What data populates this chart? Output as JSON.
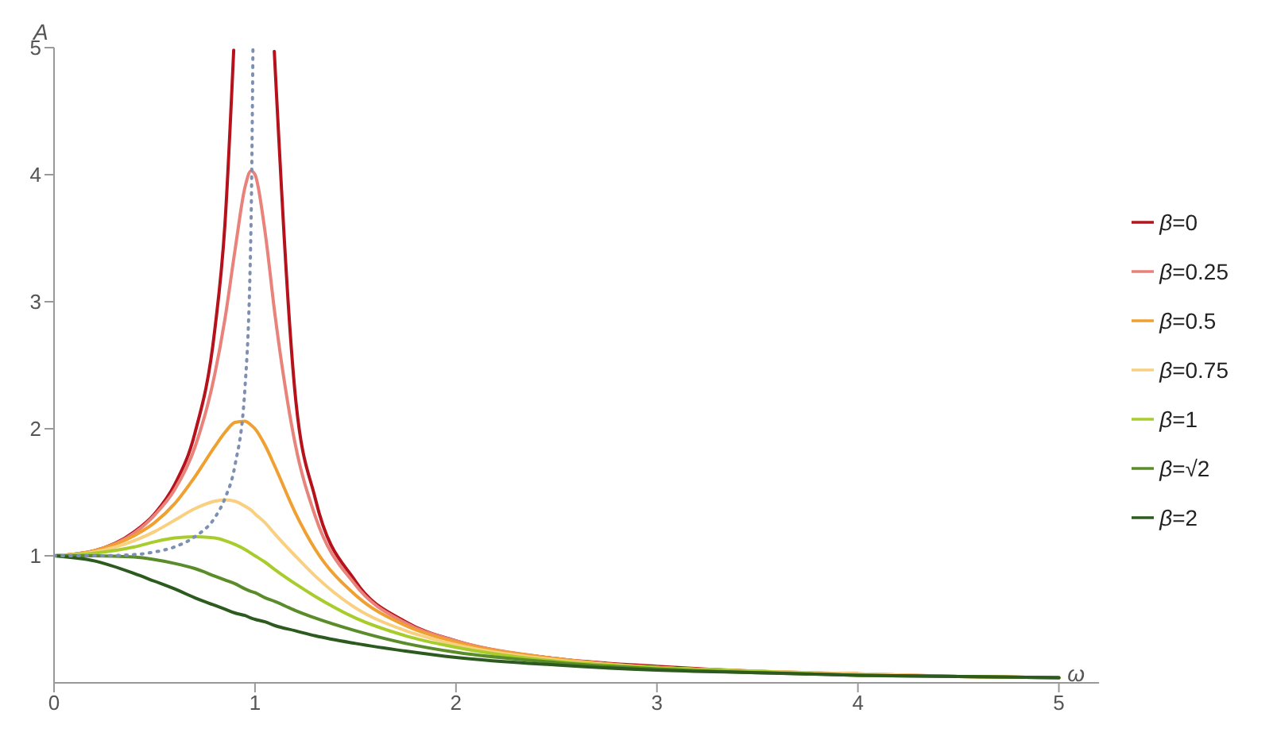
{
  "chart_data": {
    "type": "line",
    "xlabel": "ω",
    "ylabel": "A",
    "xlim": [
      0,
      5.2
    ],
    "ylim": [
      0,
      5
    ],
    "xticks": [
      0,
      1,
      2,
      3,
      4,
      5
    ],
    "yticks": [
      1,
      2,
      3,
      4,
      5
    ],
    "legend": "right",
    "marker": "none",
    "line_style": "solid",
    "x": [
      0,
      0.2,
      0.4,
      0.5,
      0.6,
      0.7,
      0.8,
      0.85,
      0.9,
      0.95,
      0.98,
      1.0,
      1.05,
      1.1,
      1.2,
      1.3,
      1.5,
      1.75,
      2,
      2.5,
      3,
      3.5,
      4,
      4.5,
      5
    ],
    "series": [
      {
        "name": "β=0",
        "color": "#b5121b",
        "x": [
          0,
          0.2,
          0.4,
          0.5,
          0.6,
          0.7,
          0.8,
          0.85,
          0.894,
          1.0,
          1.096,
          1.2,
          1.3,
          1.5,
          1.75,
          2,
          2.5,
          3,
          3.5,
          4
        ],
        "values": [
          1,
          1.04,
          1.19,
          1.33,
          1.56,
          1.96,
          2.78,
          3.6,
          4.98,
          null,
          4.97,
          2.27,
          1.45,
          0.8,
          0.48,
          0.33,
          0.19,
          0.13,
          0.09,
          0.07
        ]
      },
      {
        "name": "β=0.25",
        "color": "#e8827a",
        "values": [
          1,
          1.04,
          1.18,
          1.32,
          1.52,
          1.85,
          2.43,
          2.86,
          3.4,
          3.9,
          4.03,
          4.0,
          3.55,
          2.89,
          1.88,
          1.31,
          0.77,
          0.47,
          0.33,
          0.19,
          0.12,
          0.09,
          0.07,
          0.05,
          0.04
        ]
      },
      {
        "name": "β=0.5",
        "color": "#f0a030",
        "values": [
          1,
          1.04,
          1.16,
          1.26,
          1.41,
          1.62,
          1.86,
          1.97,
          2.05,
          2.06,
          2.03,
          2.0,
          1.87,
          1.7,
          1.34,
          1.05,
          0.69,
          0.45,
          0.32,
          0.19,
          0.12,
          0.09,
          0.07,
          0.05,
          0.04
        ]
      },
      {
        "name": "β=0.75",
        "color": "#f8d080",
        "values": [
          1,
          1.03,
          1.12,
          1.19,
          1.28,
          1.37,
          1.43,
          1.44,
          1.43,
          1.39,
          1.36,
          1.33,
          1.26,
          1.17,
          1.0,
          0.84,
          0.59,
          0.41,
          0.3,
          0.18,
          0.12,
          0.09,
          0.07,
          0.05,
          0.04
        ]
      },
      {
        "name": "β=1",
        "color": "#a8cc2c",
        "values": [
          1,
          1.02,
          1.07,
          1.11,
          1.14,
          1.15,
          1.14,
          1.12,
          1.09,
          1.05,
          1.02,
          1.0,
          0.95,
          0.89,
          0.78,
          0.68,
          0.51,
          0.37,
          0.28,
          0.17,
          0.12,
          0.09,
          0.06,
          0.05,
          0.04
        ]
      },
      {
        "name": "β=√2",
        "color": "#5a8c2a",
        "values": [
          1,
          1.0,
          0.99,
          0.97,
          0.94,
          0.9,
          0.84,
          0.81,
          0.78,
          0.74,
          0.72,
          0.71,
          0.67,
          0.64,
          0.57,
          0.51,
          0.41,
          0.31,
          0.24,
          0.16,
          0.11,
          0.08,
          0.06,
          0.05,
          0.04
        ]
      },
      {
        "name": "β=2",
        "color": "#2d5a1e",
        "values": [
          1,
          0.96,
          0.86,
          0.8,
          0.74,
          0.67,
          0.61,
          0.58,
          0.55,
          0.53,
          0.51,
          0.5,
          0.48,
          0.45,
          0.41,
          0.37,
          0.31,
          0.25,
          0.2,
          0.14,
          0.1,
          0.08,
          0.06,
          0.05,
          0.04
        ]
      },
      {
        "color": "#7d8fb3",
        "line_style": "dotted",
        "x": [
          0,
          0.2,
          0.4,
          0.5,
          0.6,
          0.7,
          0.8,
          0.85,
          0.9,
          0.95,
          0.98,
          0.9898
        ],
        "values": [
          1,
          1.0,
          1.01,
          1.03,
          1.07,
          1.15,
          1.3,
          1.45,
          1.71,
          2.32,
          3.59,
          4.99
        ]
      }
    ]
  }
}
